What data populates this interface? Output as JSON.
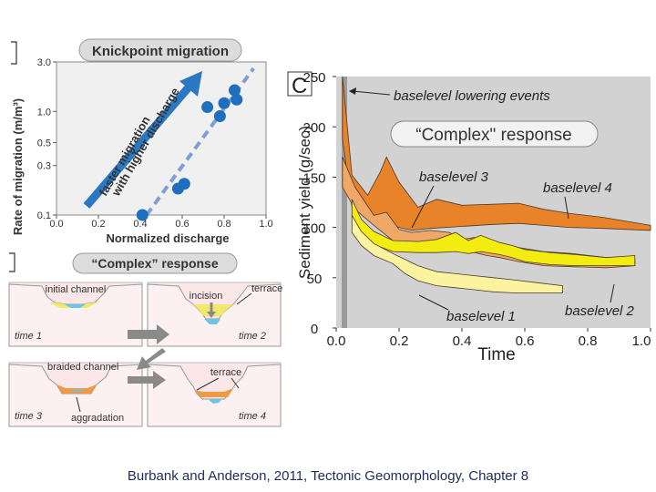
{
  "panel_a": {
    "title": "Knickpoint migration",
    "ylabel": "Rate of migration (m/m³)",
    "xlabel": "Normalized discharge",
    "arrow_label_line1": "faster migration",
    "arrow_label_line2": "with higher discharge",
    "y_ticks": [
      "3.0",
      "1.0",
      "0.5",
      "0.3",
      "0.1"
    ],
    "x_ticks": [
      "0.0",
      "0.2",
      "0.4",
      "0.6",
      "0.8",
      "1.0"
    ]
  },
  "panel_b": {
    "title": "“Complex” response",
    "labels": {
      "initial_channel": "initial channel",
      "terrace_1": "terrace",
      "incision": "incision",
      "braided_channel": "braided channel",
      "terrace_2": "terrace",
      "aggradation": "aggradation",
      "time1": "time 1",
      "time2": "time 2",
      "time3": "time 3",
      "time4": "time 4"
    }
  },
  "panel_c": {
    "panel_letter": "C",
    "title": "“Complex\" response",
    "ylabel": "Sediment yield (g/sec)",
    "xlabel": "Time",
    "y_ticks": [
      "250",
      "200",
      "150",
      "100",
      "50",
      "0"
    ],
    "x_ticks": [
      "0.0",
      "0.2",
      "0.4",
      "0.6",
      "0.8",
      "1.0"
    ],
    "event_label": "baselevel lowering events",
    "series_labels": [
      "baselevel 1",
      "baselevel 2",
      "baselevel 3",
      "baselevel 4"
    ]
  },
  "chart_data": [
    {
      "type": "scatter",
      "title": "Knickpoint migration",
      "xlabel": "Normalized discharge",
      "ylabel": "Rate of migration (m/m³)",
      "xlim": [
        0,
        1.0
      ],
      "ylim": [
        0.1,
        3.0
      ],
      "y_scale": "log",
      "grid": false,
      "series": [
        {
          "x": [
            0.41,
            0.58,
            0.61,
            0.72,
            0.78,
            0.8,
            0.85,
            0.86
          ],
          "y": [
            0.1,
            0.18,
            0.2,
            1.1,
            0.9,
            1.2,
            1.6,
            1.3
          ]
        }
      ],
      "trend_line": {
        "x": [
          0.43,
          0.94
        ],
        "y": [
          0.1,
          2.6
        ]
      }
    },
    {
      "type": "area",
      "title": "“Complex\" response",
      "xlabel": "Time",
      "ylabel": "Sediment yield (g/sec)",
      "xlim": [
        0,
        1.0
      ],
      "ylim": [
        0,
        250
      ],
      "grid": false,
      "series": [
        {
          "name": "baselevel 4",
          "color": "#e8832a",
          "upper": [
            [
              0.02,
              250
            ],
            [
              0.05,
              152
            ],
            [
              0.1,
              132
            ],
            [
              0.14,
              155
            ],
            [
              0.16,
              170
            ],
            [
              0.2,
              145
            ],
            [
              0.26,
              120
            ],
            [
              0.32,
              128
            ],
            [
              0.4,
              122
            ],
            [
              0.5,
              123
            ],
            [
              0.58,
              124
            ],
            [
              0.66,
              118
            ],
            [
              0.74,
              114
            ],
            [
              0.85,
              110
            ],
            [
              1.0,
              102
            ]
          ],
          "lower": [
            [
              0.02,
              188
            ],
            [
              0.05,
              120
            ],
            [
              0.1,
              110
            ],
            [
              0.16,
              105
            ],
            [
              0.2,
              100
            ],
            [
              0.24,
              97
            ],
            [
              0.3,
              99
            ],
            [
              0.4,
              101
            ],
            [
              0.5,
              103
            ],
            [
              0.58,
              104
            ],
            [
              0.66,
              102
            ],
            [
              0.74,
              100
            ],
            [
              0.85,
              99
            ],
            [
              1.0,
              97
            ]
          ]
        },
        {
          "name": "baselevel 3",
          "color": "#f0a868",
          "upper": [
            [
              0.02,
              170
            ],
            [
              0.06,
              140
            ],
            [
              0.12,
              112
            ],
            [
              0.16,
              115
            ],
            [
              0.2,
              98
            ],
            [
              0.24,
              95
            ],
            [
              0.3,
              97
            ],
            [
              0.36,
              95
            ],
            [
              0.4,
              88
            ],
            [
              0.44,
              90
            ],
            [
              0.48,
              86
            ],
            [
              0.52,
              84
            ],
            [
              0.58,
              80
            ],
            [
              0.66,
              76
            ],
            [
              0.75,
              74
            ],
            [
              0.86,
              70
            ],
            [
              0.95,
              69
            ]
          ],
          "lower": [
            [
              0.02,
              140
            ],
            [
              0.06,
              118
            ],
            [
              0.12,
              102
            ],
            [
              0.16,
              92
            ],
            [
              0.2,
              82
            ],
            [
              0.24,
              80
            ],
            [
              0.3,
              82
            ],
            [
              0.36,
              80
            ],
            [
              0.4,
              76
            ],
            [
              0.44,
              75
            ],
            [
              0.48,
              72
            ],
            [
              0.52,
              70
            ],
            [
              0.58,
              66
            ],
            [
              0.66,
              62
            ],
            [
              0.75,
              61
            ],
            [
              0.86,
              60
            ],
            [
              0.95,
              62
            ]
          ]
        },
        {
          "name": "baselevel 2",
          "color": "#f2ec10",
          "upper": [
            [
              0.05,
              128
            ],
            [
              0.08,
              108
            ],
            [
              0.12,
              96
            ],
            [
              0.18,
              87
            ],
            [
              0.26,
              86
            ],
            [
              0.32,
              88
            ],
            [
              0.38,
              95
            ],
            [
              0.42,
              87
            ],
            [
              0.46,
              92
            ],
            [
              0.52,
              85
            ],
            [
              0.56,
              82
            ],
            [
              0.6,
              78
            ],
            [
              0.68,
              75
            ],
            [
              0.76,
              73
            ],
            [
              0.86,
              70
            ],
            [
              0.95,
              72
            ]
          ],
          "lower": [
            [
              0.05,
              110
            ],
            [
              0.08,
              94
            ],
            [
              0.12,
              83
            ],
            [
              0.18,
              76
            ],
            [
              0.26,
              75
            ],
            [
              0.32,
              75
            ],
            [
              0.38,
              76
            ],
            [
              0.42,
              74
            ],
            [
              0.46,
              76
            ],
            [
              0.52,
              73
            ],
            [
              0.56,
              70
            ],
            [
              0.6,
              66
            ],
            [
              0.68,
              63
            ],
            [
              0.76,
              62
            ],
            [
              0.86,
              62
            ],
            [
              0.95,
              62
            ]
          ]
        },
        {
          "name": "baselevel 1",
          "color": "#fbf3a0",
          "upper": [
            [
              0.05,
              112
            ],
            [
              0.08,
              96
            ],
            [
              0.12,
              84
            ],
            [
              0.18,
              74
            ],
            [
              0.22,
              68
            ],
            [
              0.26,
              62
            ],
            [
              0.32,
              56
            ],
            [
              0.38,
              54
            ],
            [
              0.44,
              52
            ],
            [
              0.5,
              50
            ],
            [
              0.56,
              48
            ],
            [
              0.64,
              45
            ],
            [
              0.72,
              42
            ]
          ],
          "lower": [
            [
              0.05,
              95
            ],
            [
              0.08,
              82
            ],
            [
              0.12,
              72
            ],
            [
              0.18,
              64
            ],
            [
              0.22,
              54
            ],
            [
              0.26,
              47
            ],
            [
              0.32,
              42
            ],
            [
              0.38,
              40
            ],
            [
              0.44,
              38
            ],
            [
              0.5,
              36
            ],
            [
              0.56,
              35
            ],
            [
              0.64,
              35
            ],
            [
              0.72,
              35
            ]
          ]
        }
      ],
      "events": [
        0.02
      ]
    }
  ],
  "caption": "Burbank and Anderson, 2011, Tectonic Geomorphology, Chapter 8"
}
